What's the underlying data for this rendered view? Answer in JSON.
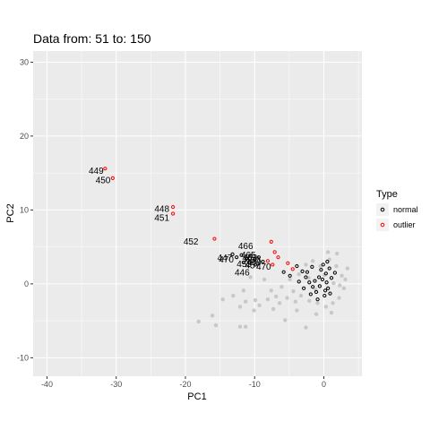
{
  "chart_data": {
    "type": "scatter",
    "title": "Data from:  51  to:  150",
    "xlabel": "PC1",
    "ylabel": "PC2",
    "xlim": [
      -42,
      5.5
    ],
    "ylim": [
      -12.5,
      31.5
    ],
    "x_ticks": [
      -40,
      -30,
      -20,
      -10,
      0
    ],
    "y_ticks": [
      -10,
      0,
      10,
      20,
      30
    ],
    "grid": true,
    "legend": {
      "title": "Type",
      "placement": "right",
      "entries": [
        {
          "name": "normal",
          "color": "#000000"
        },
        {
          "name": "outlier",
          "color": "#ff0000"
        }
      ]
    },
    "colors": {
      "panel_bg": "#ebebeb",
      "grid_major": "#ffffff",
      "background_points": "#c8c8c8",
      "normal": "#000000",
      "outlier": "#ff0000"
    },
    "series": [
      {
        "name": "outlier",
        "points": [
          {
            "x": -31.6,
            "y": 15.6
          },
          {
            "x": -30.5,
            "y": 14.3
          },
          {
            "x": -21.8,
            "y": 10.4
          },
          {
            "x": -21.8,
            "y": 9.5
          },
          {
            "x": -15.8,
            "y": 6.1
          },
          {
            "x": -7.6,
            "y": 5.7
          },
          {
            "x": -7.1,
            "y": 4.3
          },
          {
            "x": -6.6,
            "y": 3.6
          },
          {
            "x": -8.1,
            "y": 3.1
          },
          {
            "x": -7.4,
            "y": 2.6
          },
          {
            "x": -5.2,
            "y": 2.8
          },
          {
            "x": -4.5,
            "y": 2.0
          }
        ]
      },
      {
        "name": "normal",
        "points": [
          {
            "x": -13.2,
            "y": 4.0
          },
          {
            "x": -12.6,
            "y": 3.6
          },
          {
            "x": -11.9,
            "y": 3.9
          },
          {
            "x": -11.2,
            "y": 3.4
          },
          {
            "x": -10.6,
            "y": 3.8
          },
          {
            "x": -10.0,
            "y": 3.3
          },
          {
            "x": -9.4,
            "y": 3.6
          },
          {
            "x": -8.8,
            "y": 3.0
          },
          {
            "x": -11.6,
            "y": 2.9
          },
          {
            "x": -9.9,
            "y": 2.6
          },
          {
            "x": -5.8,
            "y": 1.6
          },
          {
            "x": -4.9,
            "y": 1.1
          },
          {
            "x": -3.9,
            "y": 2.4
          },
          {
            "x": -3.1,
            "y": 1.7
          },
          {
            "x": -2.6,
            "y": 0.9
          },
          {
            "x": -2.1,
            "y": 0.2
          },
          {
            "x": -1.6,
            "y": -0.4
          },
          {
            "x": -1.1,
            "y": -1.1
          },
          {
            "x": -0.6,
            "y": -0.3
          },
          {
            "x": -0.2,
            "y": 0.6
          },
          {
            "x": 0.3,
            "y": 1.4
          },
          {
            "x": 0.8,
            "y": 2.1
          },
          {
            "x": 1.1,
            "y": 0.8
          },
          {
            "x": 0.6,
            "y": -0.6
          },
          {
            "x": 0.1,
            "y": -1.6
          },
          {
            "x": -0.9,
            "y": -2.1
          },
          {
            "x": -1.9,
            "y": -1.4
          },
          {
            "x": -2.9,
            "y": -0.6
          },
          {
            "x": -1.3,
            "y": 0.4
          },
          {
            "x": 0.4,
            "y": 0.2
          },
          {
            "x": -0.4,
            "y": 1.9
          },
          {
            "x": 0.9,
            "y": -1.3
          },
          {
            "x": 1.6,
            "y": 1.5
          },
          {
            "x": -3.6,
            "y": 0.3
          },
          {
            "x": -2.4,
            "y": 1.6
          },
          {
            "x": -0.1,
            "y": 2.6
          },
          {
            "x": 0.5,
            "y": 3.0
          },
          {
            "x": -1.7,
            "y": 2.3
          },
          {
            "x": -0.7,
            "y": 0.9
          },
          {
            "x": 0.2,
            "y": -0.9
          }
        ]
      }
    ],
    "background_points": [
      {
        "x": -0.5,
        "y": 2.4
      },
      {
        "x": 0.8,
        "y": 3.3
      },
      {
        "x": 1.8,
        "y": 2.4
      },
      {
        "x": 2.6,
        "y": 1.1
      },
      {
        "x": 2.9,
        "y": -0.6
      },
      {
        "x": 2.2,
        "y": -1.9
      },
      {
        "x": 1.3,
        "y": -2.6
      },
      {
        "x": 0.3,
        "y": -3.1
      },
      {
        "x": -0.9,
        "y": -2.6
      },
      {
        "x": -2.1,
        "y": -2.3
      },
      {
        "x": -3.3,
        "y": -1.6
      },
      {
        "x": -4.4,
        "y": -1.0
      },
      {
        "x": -5.3,
        "y": -1.9
      },
      {
        "x": -6.4,
        "y": -2.6
      },
      {
        "x": -7.3,
        "y": -3.4
      },
      {
        "x": -8.1,
        "y": -2.1
      },
      {
        "x": -9.3,
        "y": -2.9
      },
      {
        "x": -10.1,
        "y": -3.6
      },
      {
        "x": -11.3,
        "y": -2.4
      },
      {
        "x": -12.1,
        "y": -3.1
      },
      {
        "x": -6.1,
        "y": -0.4
      },
      {
        "x": -4.9,
        "y": 0.6
      },
      {
        "x": -3.6,
        "y": 1.3
      },
      {
        "x": -2.6,
        "y": 2.6
      },
      {
        "x": -1.6,
        "y": 3.1
      },
      {
        "x": 3.1,
        "y": 0.6
      },
      {
        "x": 3.4,
        "y": 2.1
      },
      {
        "x": 1.9,
        "y": 4.1
      },
      {
        "x": 0.6,
        "y": 4.3
      },
      {
        "x": -7.6,
        "y": -0.9
      },
      {
        "x": -8.6,
        "y": 0.6
      },
      {
        "x": -10.6,
        "y": 0.9
      },
      {
        "x": -11.6,
        "y": -0.9
      },
      {
        "x": -13.1,
        "y": -1.6
      },
      {
        "x": -14.6,
        "y": -2.1
      },
      {
        "x": -16.1,
        "y": -4.3
      },
      {
        "x": -18.1,
        "y": -5.1
      },
      {
        "x": -15.6,
        "y": -5.6
      },
      {
        "x": -12.1,
        "y": -5.8
      },
      {
        "x": -11.3,
        "y": -5.8
      },
      {
        "x": -2.6,
        "y": -5.9
      },
      {
        "x": -5.6,
        "y": -4.9
      },
      {
        "x": -3.9,
        "y": -3.6
      },
      {
        "x": -1.1,
        "y": -4.1
      },
      {
        "x": 1.1,
        "y": -3.9
      },
      {
        "x": 0.1,
        "y": 1.2
      },
      {
        "x": 1.4,
        "y": 0.1
      },
      {
        "x": -1.2,
        "y": -0.8
      },
      {
        "x": 2.3,
        "y": -0.2
      },
      {
        "x": -2.2,
        "y": 0.8
      },
      {
        "x": -9.9,
        "y": -2.2
      },
      {
        "x": -6.9,
        "y": -1.7
      },
      {
        "x": -4.1,
        "y": -2.4
      }
    ],
    "labels": [
      {
        "text": "449",
        "x": -32.9,
        "y": 15.4
      },
      {
        "text": "450",
        "x": -31.9,
        "y": 14.1
      },
      {
        "text": "448",
        "x": -23.4,
        "y": 10.2
      },
      {
        "text": "451",
        "x": -23.4,
        "y": 9.0
      },
      {
        "text": "452",
        "x": -19.2,
        "y": 5.8
      },
      {
        "text": "466",
        "x": -11.3,
        "y": 5.2
      },
      {
        "text": "447",
        "x": -14.3,
        "y": 3.6
      },
      {
        "text": "470",
        "x": -14.1,
        "y": 3.4
      },
      {
        "text": "465",
        "x": -10.9,
        "y": 4.0
      },
      {
        "text": "463",
        "x": -10.7,
        "y": 3.6
      },
      {
        "text": "460",
        "x": -10.3,
        "y": 3.3
      },
      {
        "text": "469",
        "x": -10.1,
        "y": 3.0
      },
      {
        "text": "453",
        "x": -11.5,
        "y": 2.8
      },
      {
        "text": "457",
        "x": -10.3,
        "y": 2.6
      },
      {
        "text": "470",
        "x": -8.7,
        "y": 2.4
      },
      {
        "text": "446",
        "x": -11.8,
        "y": 1.6
      }
    ]
  }
}
